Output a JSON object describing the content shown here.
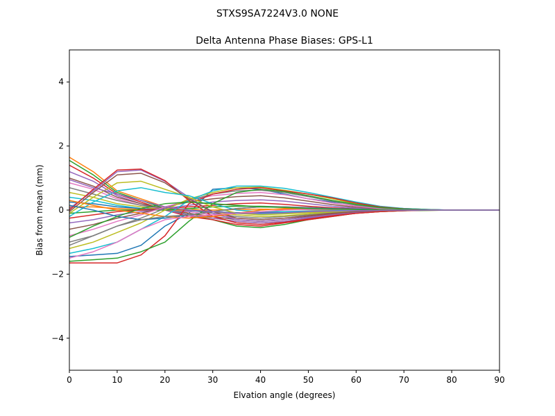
{
  "suptitle": "STXS9SA7224V3.0 NONE",
  "chart_data": {
    "type": "line",
    "title": "Delta Antenna Phase Biases: GPS-L1",
    "xlabel": "Elvation angle (degrees)",
    "ylabel": "Bias from mean (mm)",
    "xlim": [
      0,
      90
    ],
    "ylim": [
      -5,
      5
    ],
    "x_ticks": [
      0,
      10,
      20,
      30,
      40,
      50,
      60,
      70,
      80,
      90
    ],
    "y_ticks": [
      -4,
      -2,
      0,
      2,
      4
    ],
    "x_tick_labels": [
      "0",
      "10",
      "20",
      "30",
      "40",
      "50",
      "60",
      "70",
      "80",
      "90"
    ],
    "y_tick_labels": [
      "−4",
      "−2",
      "0",
      "2",
      "4"
    ],
    "grid": false,
    "x": [
      0,
      5,
      10,
      15,
      20,
      25,
      30,
      35,
      40,
      45,
      50,
      55,
      60,
      65,
      70,
      75,
      80,
      85,
      90
    ],
    "series": [
      {
        "color": "#1f77b4",
        "values": [
          -1.45,
          -1.4,
          -1.35,
          -1.1,
          -0.5,
          -0.1,
          0.65,
          0.7,
          0.65,
          0.5,
          0.35,
          0.25,
          0.18,
          0.1,
          0.05,
          0.02,
          0.0,
          0.0,
          0.0
        ]
      },
      {
        "color": "#ff7f0e",
        "values": [
          1.65,
          1.2,
          0.6,
          0.35,
          0.1,
          -0.1,
          -0.25,
          -0.35,
          -0.4,
          -0.35,
          -0.25,
          -0.15,
          -0.08,
          -0.04,
          -0.02,
          -0.01,
          0.0,
          0.0,
          0.0
        ]
      },
      {
        "color": "#2ca02c",
        "values": [
          1.55,
          1.1,
          0.55,
          0.3,
          0.05,
          -0.15,
          -0.3,
          -0.5,
          -0.55,
          -0.45,
          -0.3,
          -0.2,
          -0.1,
          -0.05,
          -0.02,
          -0.01,
          0.0,
          0.0,
          0.0
        ]
      },
      {
        "color": "#d62728",
        "values": [
          1.4,
          1.0,
          0.5,
          0.25,
          0.0,
          -0.2,
          -0.3,
          -0.45,
          -0.5,
          -0.4,
          -0.3,
          -0.2,
          -0.1,
          -0.05,
          -0.02,
          0.0,
          0.0,
          0.0,
          0.0
        ]
      },
      {
        "color": "#9467bd",
        "values": [
          1.2,
          0.9,
          0.45,
          0.2,
          0.0,
          -0.15,
          -0.25,
          -0.35,
          -0.4,
          -0.35,
          -0.25,
          -0.15,
          -0.08,
          -0.04,
          -0.02,
          0.0,
          0.0,
          0.0,
          0.0
        ]
      },
      {
        "color": "#8c564b",
        "values": [
          1.0,
          0.75,
          0.4,
          0.2,
          0.05,
          -0.1,
          -0.2,
          -0.3,
          -0.35,
          -0.3,
          -0.2,
          -0.12,
          -0.06,
          -0.03,
          -0.01,
          0.0,
          0.0,
          0.0,
          0.0
        ]
      },
      {
        "color": "#e377c2",
        "values": [
          0.85,
          0.65,
          0.35,
          0.15,
          0.0,
          -0.05,
          -0.15,
          -0.25,
          -0.3,
          -0.25,
          -0.18,
          -0.1,
          -0.05,
          -0.02,
          -0.01,
          0.0,
          0.0,
          0.0,
          0.0
        ]
      },
      {
        "color": "#7f7f7f",
        "values": [
          0.7,
          0.5,
          0.3,
          0.15,
          0.05,
          0.0,
          -0.1,
          -0.2,
          -0.25,
          -0.2,
          -0.15,
          -0.08,
          -0.04,
          -0.02,
          0.0,
          0.0,
          0.0,
          0.0,
          0.0
        ]
      },
      {
        "color": "#bcbd22",
        "values": [
          0.55,
          0.4,
          0.2,
          0.1,
          0.0,
          0.05,
          -0.05,
          -0.15,
          -0.2,
          -0.18,
          -0.12,
          -0.06,
          -0.03,
          -0.01,
          0.0,
          0.0,
          0.0,
          0.0,
          0.0
        ]
      },
      {
        "color": "#17becf",
        "values": [
          0.4,
          0.3,
          0.15,
          0.05,
          0.0,
          0.0,
          -0.05,
          -0.1,
          -0.12,
          -0.1,
          -0.08,
          -0.04,
          -0.02,
          -0.01,
          0.0,
          0.0,
          0.0,
          0.0,
          0.0
        ]
      },
      {
        "color": "#1f77b4",
        "values": [
          0.25,
          0.2,
          0.1,
          0.05,
          0.0,
          -0.02,
          -0.05,
          -0.08,
          -0.08,
          -0.06,
          -0.04,
          -0.02,
          -0.01,
          0.0,
          0.0,
          0.0,
          0.0,
          0.0,
          0.0
        ]
      },
      {
        "color": "#ff7f0e",
        "values": [
          0.1,
          0.1,
          0.05,
          0.02,
          0.0,
          0.0,
          0.0,
          0.02,
          0.03,
          0.02,
          0.01,
          0.0,
          0.0,
          0.0,
          0.0,
          0.0,
          0.0,
          0.0,
          0.0
        ]
      },
      {
        "color": "#2ca02c",
        "values": [
          -0.1,
          -0.05,
          0.0,
          0.0,
          0.0,
          0.05,
          0.1,
          0.12,
          0.12,
          0.1,
          0.07,
          0.04,
          0.02,
          0.01,
          0.0,
          0.0,
          0.0,
          0.0,
          0.0
        ]
      },
      {
        "color": "#d62728",
        "values": [
          -0.25,
          -0.15,
          -0.05,
          0.0,
          0.05,
          0.1,
          0.15,
          0.2,
          0.22,
          0.18,
          0.12,
          0.07,
          0.04,
          0.02,
          0.01,
          0.0,
          0.0,
          0.0,
          0.0
        ]
      },
      {
        "color": "#9467bd",
        "values": [
          -0.4,
          -0.3,
          -0.15,
          -0.05,
          0.05,
          0.15,
          0.25,
          0.3,
          0.32,
          0.28,
          0.2,
          0.12,
          0.06,
          0.03,
          0.01,
          0.0,
          0.0,
          0.0,
          0.0
        ]
      },
      {
        "color": "#8c564b",
        "values": [
          -0.6,
          -0.45,
          -0.25,
          -0.1,
          0.1,
          0.25,
          0.35,
          0.42,
          0.45,
          0.38,
          0.28,
          0.17,
          0.09,
          0.04,
          0.02,
          0.0,
          0.0,
          0.0,
          0.0
        ]
      },
      {
        "color": "#e377c2",
        "values": [
          -0.8,
          -0.6,
          -0.35,
          -0.15,
          0.1,
          0.3,
          0.45,
          0.52,
          0.55,
          0.48,
          0.35,
          0.22,
          0.12,
          0.05,
          0.02,
          0.0,
          0.0,
          0.0,
          0.0
        ]
      },
      {
        "color": "#7f7f7f",
        "values": [
          -1.0,
          -0.8,
          -0.5,
          -0.25,
          0.05,
          0.3,
          0.5,
          0.6,
          0.62,
          0.55,
          0.42,
          0.28,
          0.15,
          0.07,
          0.03,
          0.01,
          0.0,
          0.0,
          0.0
        ]
      },
      {
        "color": "#bcbd22",
        "values": [
          -1.2,
          -1.0,
          -0.7,
          -0.4,
          0.0,
          0.35,
          0.55,
          0.7,
          0.72,
          0.62,
          0.5,
          0.35,
          0.2,
          0.1,
          0.04,
          0.01,
          0.0,
          0.0,
          0.0
        ]
      },
      {
        "color": "#17becf",
        "values": [
          -1.35,
          -1.2,
          -1.0,
          -0.6,
          -0.2,
          0.3,
          0.6,
          0.75,
          0.75,
          0.68,
          0.55,
          0.4,
          0.25,
          0.12,
          0.05,
          0.02,
          0.0,
          0.0,
          0.0
        ]
      },
      {
        "color": "#d62728",
        "values": [
          -1.65,
          -1.65,
          -1.65,
          -1.4,
          -0.8,
          0.2,
          0.5,
          0.65,
          0.7,
          0.6,
          0.5,
          0.38,
          0.22,
          0.1,
          0.04,
          0.01,
          0.0,
          0.0,
          0.0
        ]
      },
      {
        "color": "#2ca02c",
        "values": [
          -1.6,
          -1.55,
          -1.5,
          -1.3,
          -1.0,
          -0.35,
          0.2,
          0.55,
          0.65,
          0.58,
          0.45,
          0.3,
          0.18,
          0.08,
          0.03,
          0.01,
          0.0,
          0.0,
          0.0
        ]
      },
      {
        "color": "#9467bd",
        "values": [
          0.05,
          0.6,
          1.2,
          1.25,
          0.9,
          0.4,
          -0.1,
          -0.3,
          -0.35,
          -0.3,
          -0.22,
          -0.15,
          -0.08,
          -0.04,
          -0.02,
          0.0,
          0.0,
          0.0,
          0.0
        ]
      },
      {
        "color": "#d62728",
        "values": [
          0.0,
          0.65,
          1.25,
          1.28,
          0.92,
          0.3,
          -0.2,
          -0.4,
          -0.45,
          -0.38,
          -0.28,
          -0.18,
          -0.1,
          -0.05,
          -0.02,
          0.0,
          0.0,
          0.0,
          0.0
        ]
      },
      {
        "color": "#8c564b",
        "values": [
          -0.05,
          0.55,
          1.1,
          1.15,
          0.85,
          0.35,
          -0.05,
          -0.25,
          -0.3,
          -0.25,
          -0.18,
          -0.1,
          -0.05,
          -0.02,
          -0.01,
          0.0,
          0.0,
          0.0,
          0.0
        ]
      },
      {
        "color": "#bcbd22",
        "values": [
          -0.1,
          0.4,
          0.85,
          0.9,
          0.65,
          0.4,
          0.1,
          -0.1,
          -0.15,
          -0.12,
          -0.08,
          -0.04,
          -0.02,
          -0.01,
          0.0,
          0.0,
          0.0,
          0.0,
          0.0
        ]
      },
      {
        "color": "#17becf",
        "values": [
          -0.2,
          0.25,
          0.6,
          0.7,
          0.55,
          0.45,
          0.2,
          0.0,
          -0.05,
          -0.05,
          -0.03,
          -0.02,
          -0.01,
          0.0,
          0.0,
          0.0,
          0.0,
          0.0,
          0.0
        ]
      },
      {
        "color": "#1f77b4",
        "values": [
          0.15,
          0.0,
          -0.2,
          -0.3,
          -0.25,
          -0.15,
          -0.05,
          0.05,
          0.1,
          0.1,
          0.08,
          0.05,
          0.03,
          0.01,
          0.0,
          0.0,
          0.0,
          0.0,
          0.0
        ]
      },
      {
        "color": "#ff7f0e",
        "values": [
          0.3,
          0.15,
          0.0,
          -0.1,
          -0.2,
          -0.25,
          -0.2,
          -0.1,
          0.0,
          0.05,
          0.05,
          0.03,
          0.02,
          0.01,
          0.0,
          0.0,
          0.0,
          0.0,
          0.0
        ]
      },
      {
        "color": "#e377c2",
        "values": [
          -1.5,
          -1.3,
          -1.0,
          -0.6,
          -0.3,
          -0.2,
          -0.15,
          -0.1,
          -0.05,
          0.0,
          0.02,
          0.02,
          0.01,
          0.0,
          0.0,
          0.0,
          0.0,
          0.0,
          0.0
        ]
      },
      {
        "color": "#7f7f7f",
        "values": [
          -1.1,
          -0.8,
          -0.5,
          -0.3,
          -0.2,
          -0.15,
          -0.05,
          0.05,
          0.1,
          0.1,
          0.07,
          0.04,
          0.02,
          0.01,
          0.0,
          0.0,
          0.0,
          0.0,
          0.0
        ]
      },
      {
        "color": "#2ca02c",
        "values": [
          -0.85,
          -0.5,
          -0.2,
          0.05,
          0.2,
          0.25,
          0.2,
          0.15,
          0.1,
          0.08,
          0.05,
          0.03,
          0.02,
          0.01,
          0.0,
          0.0,
          0.0,
          0.0,
          0.0
        ]
      },
      {
        "color": "#9467bd",
        "values": [
          0.95,
          0.7,
          0.5,
          0.3,
          0.1,
          0.0,
          -0.05,
          -0.1,
          -0.1,
          -0.08,
          -0.05,
          -0.03,
          -0.02,
          -0.01,
          0.0,
          0.0,
          0.0,
          0.0,
          0.0
        ]
      }
    ]
  }
}
